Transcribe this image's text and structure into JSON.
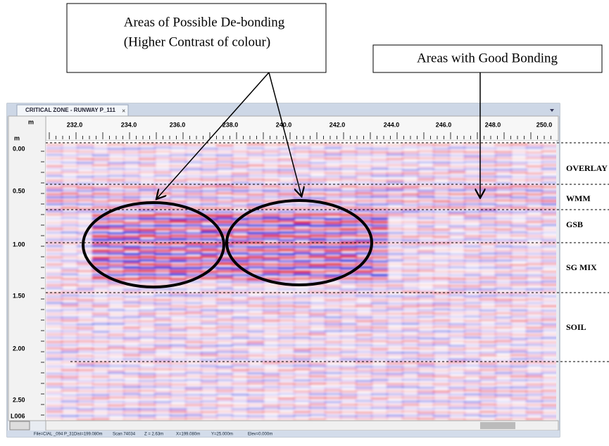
{
  "callouts": {
    "debonding": {
      "line1": "Areas of Possible De-bonding",
      "line2": "(Higher Contrast of colour)"
    },
    "good_bonding": "Areas with Good Bonding"
  },
  "window": {
    "tab": "CRITICAL ZONE - RUNWAY P_111",
    "tab_close": "×",
    "x_unit": "m",
    "y_unit": "m",
    "x_labels": [
      "232.0",
      "234.0",
      "236.0",
      "238.0",
      "240.0",
      "242.0",
      "244.0",
      "246.0",
      "248.0",
      "250.0"
    ],
    "y_labels": [
      "0.00",
      "0.50",
      "1.00",
      "1.50",
      "2.00",
      "2.50"
    ],
    "file_id": "L006",
    "status": [
      "File=CIAL _094 P_31",
      "Dist=199.080m",
      "Scan 74034",
      "Z = 2.63m",
      "X=199.080m",
      "Y=25.000m",
      "Elev=0.000m"
    ]
  },
  "layers": [
    "OVERLAY",
    "WMM",
    "GSB",
    "SG MIX",
    "SOIL"
  ]
}
